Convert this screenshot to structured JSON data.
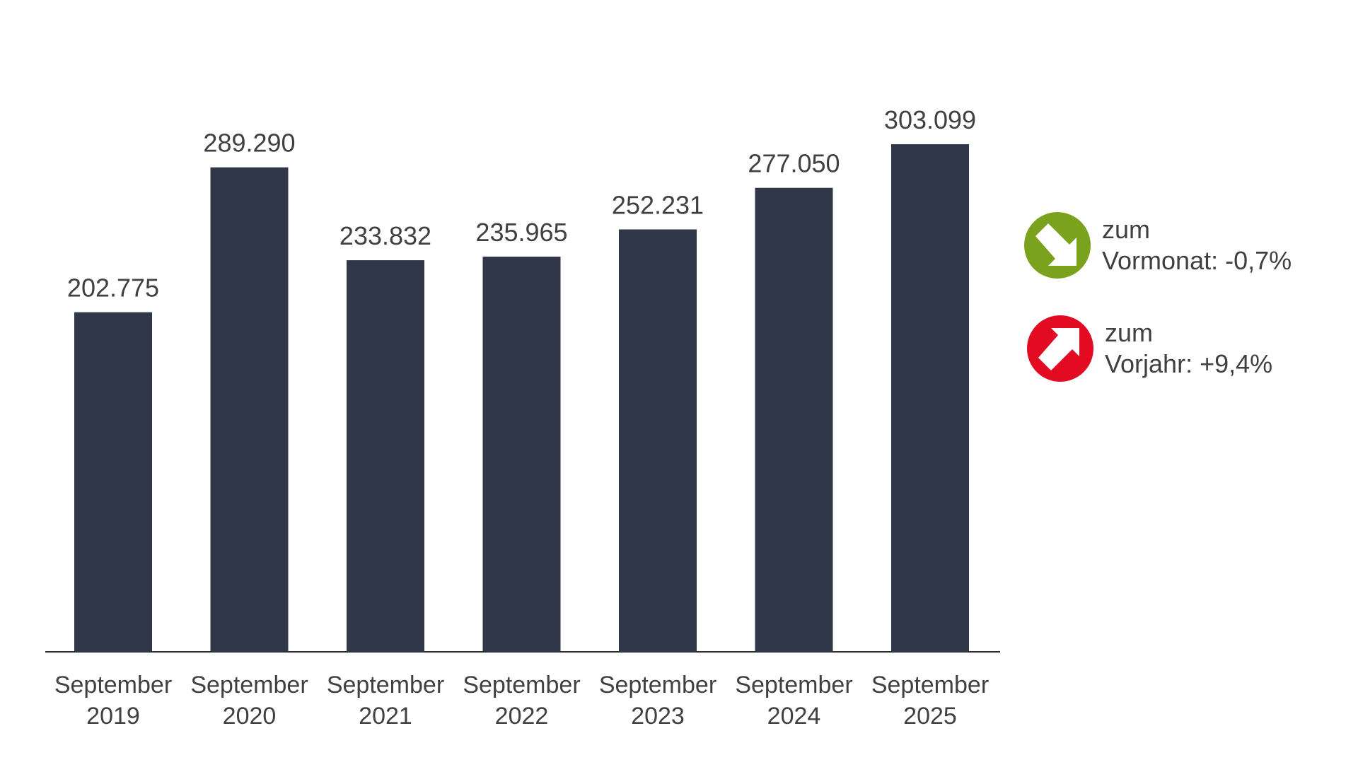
{
  "chart_data": {
    "type": "bar",
    "categories": [
      [
        "September",
        "2019"
      ],
      [
        "September",
        "2020"
      ],
      [
        "September",
        "2021"
      ],
      [
        "September",
        "2022"
      ],
      [
        "September",
        "2023"
      ],
      [
        "September",
        "2024"
      ],
      [
        "September",
        "2025"
      ]
    ],
    "values": [
      202775,
      289290,
      233832,
      235965,
      252231,
      277050,
      303099
    ],
    "value_labels": [
      "202.775",
      "289.290",
      "233.832",
      "235.965",
      "252.231",
      "277.050",
      "303.099"
    ],
    "title": "",
    "xlabel": "",
    "ylabel": "",
    "ylim": [
      0,
      303099
    ],
    "grid": false,
    "bar_color": "#303748"
  },
  "legend": {
    "month": {
      "line1": "zum",
      "line2": "Vormonat: -0,7%",
      "color": "#7ba21d",
      "icon": "arrow-down-right-icon"
    },
    "year": {
      "line1": "zum",
      "line2": "Vorjahr: +9,4%",
      "color": "#e30b21",
      "icon": "arrow-up-right-icon"
    }
  }
}
